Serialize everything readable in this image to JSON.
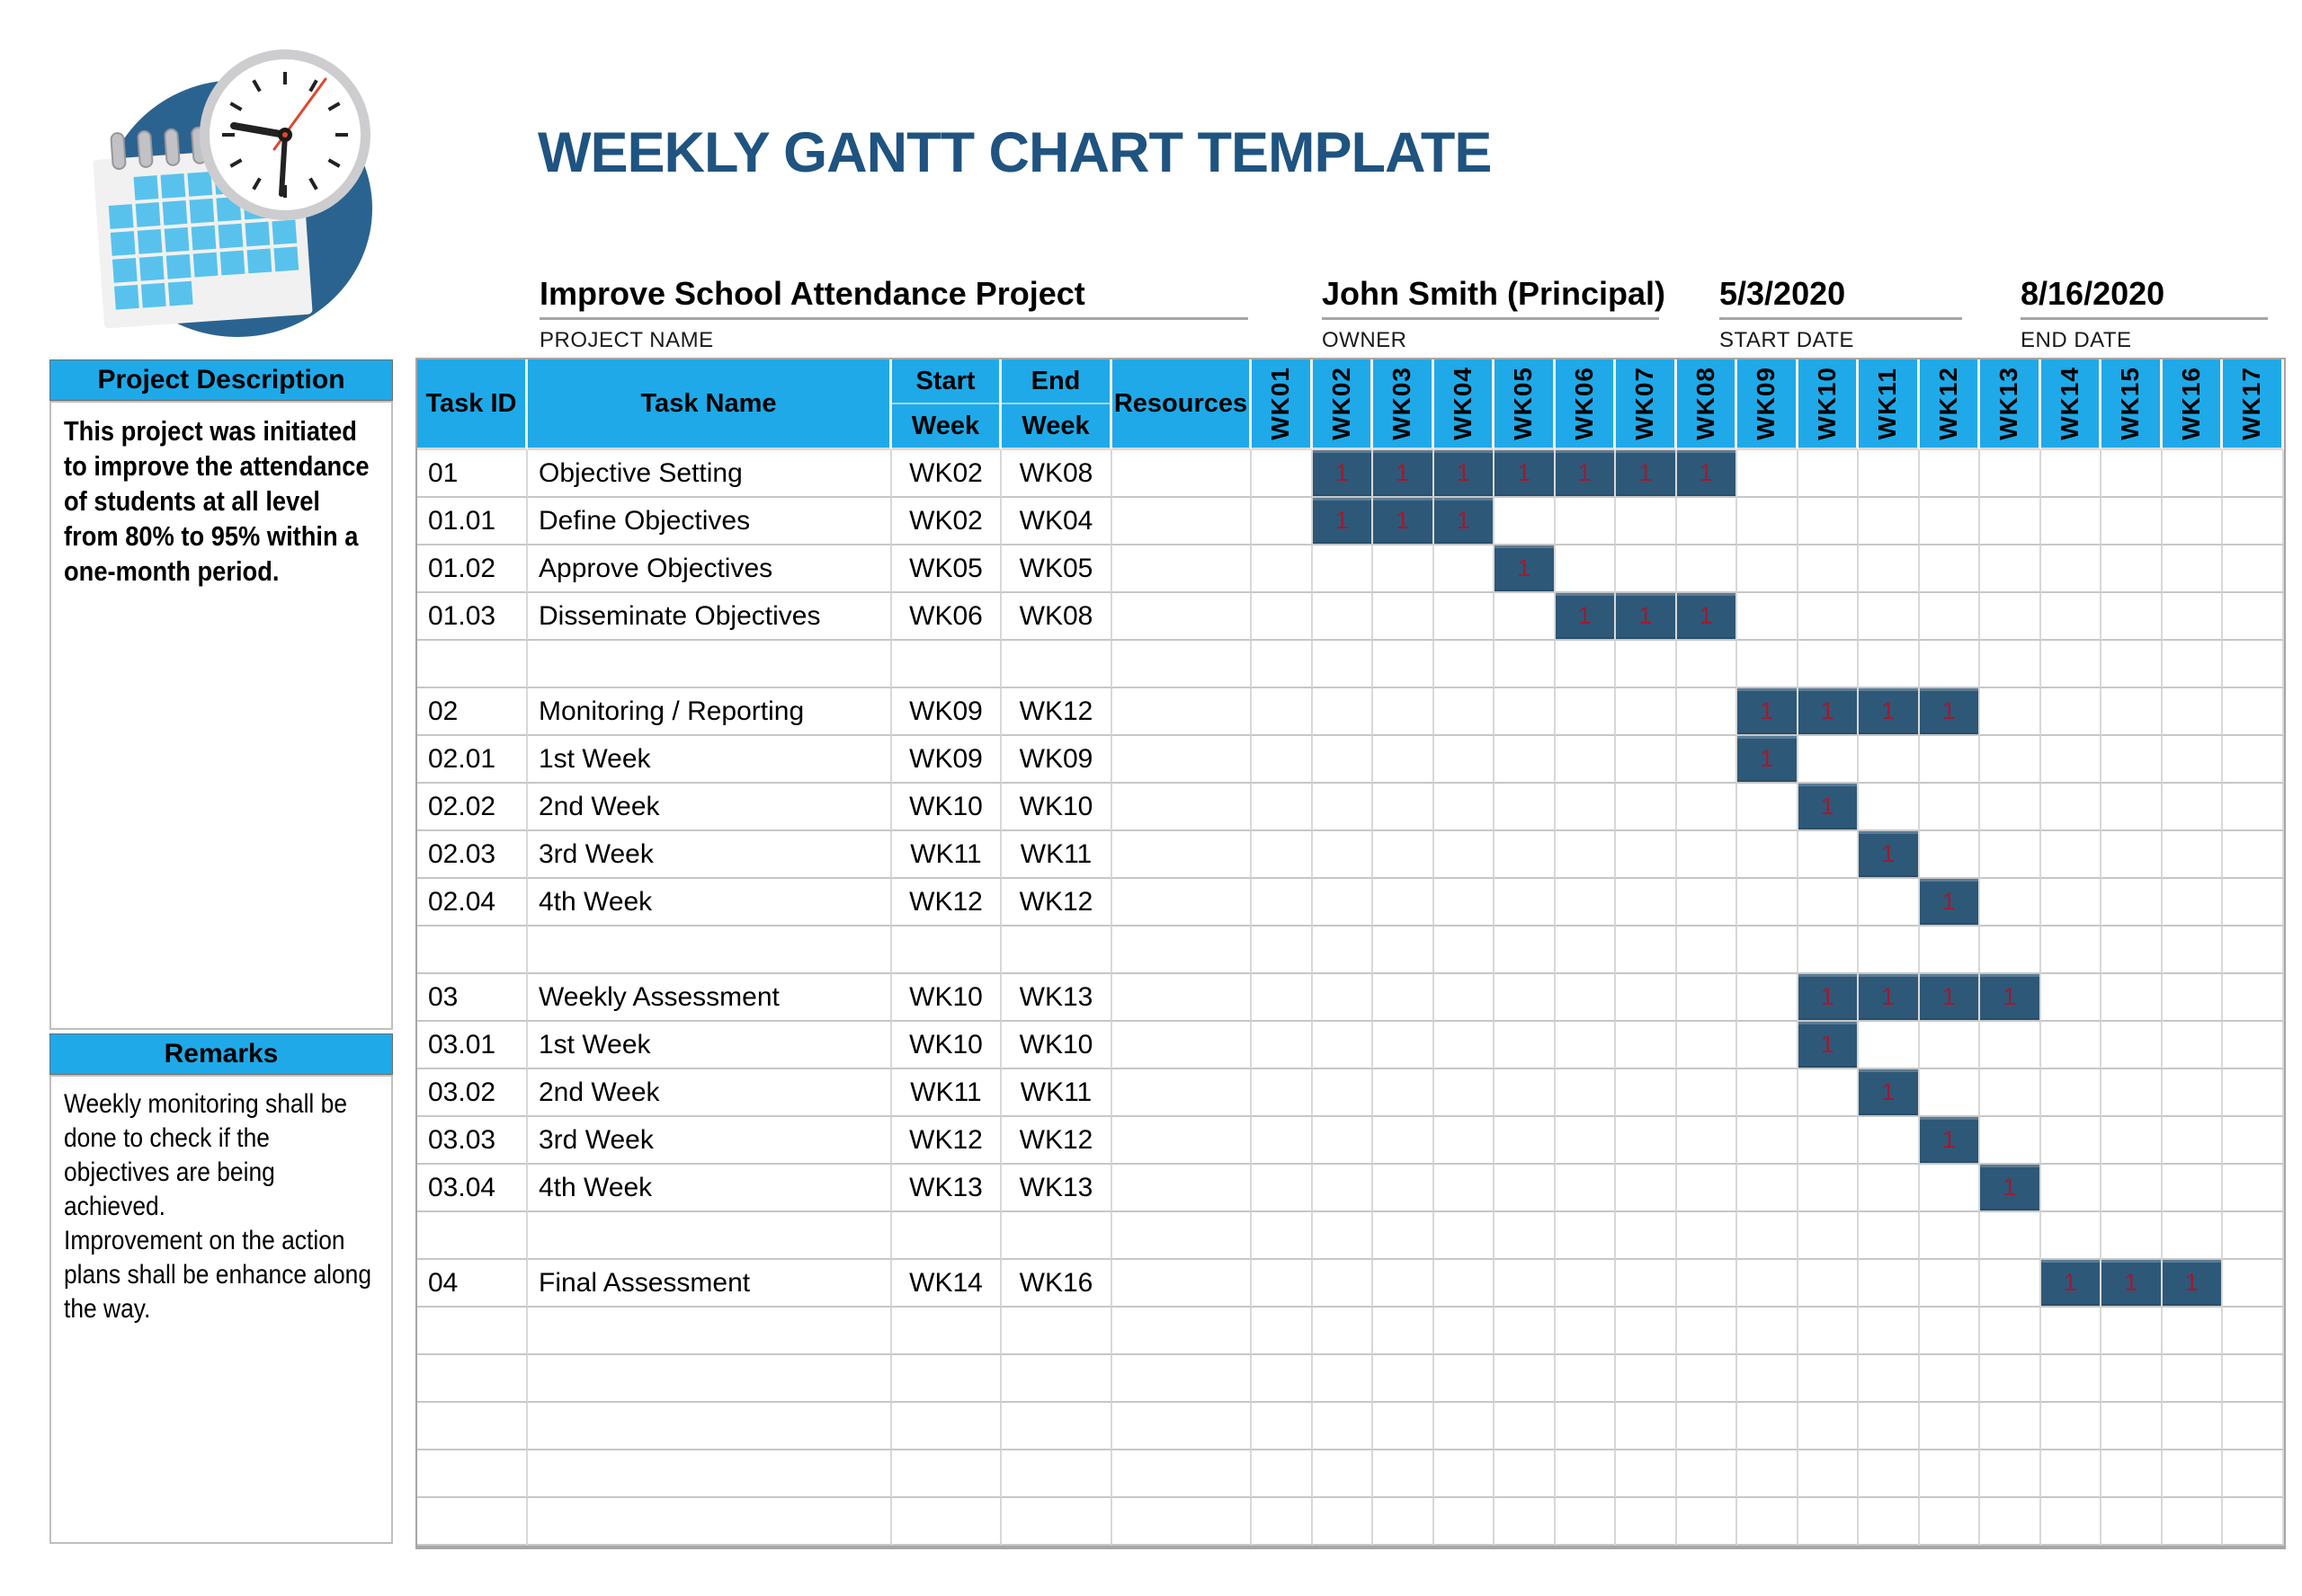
{
  "title": "WEEKLY GANTT CHART TEMPLATE",
  "logo": {
    "icon": "calendar-clock-icon"
  },
  "project_info": {
    "project_name": {
      "value": "Improve School Attendance Project",
      "label": "PROJECT NAME"
    },
    "owner": {
      "value": "John Smith (Principal)",
      "label": "OWNER"
    },
    "start_date": {
      "value": "5/3/2020",
      "label": "START DATE"
    },
    "end_date": {
      "value": "8/16/2020",
      "label": "END DATE"
    }
  },
  "sidebar": {
    "description_header": "Project Description",
    "description_text": "This project was initiated to improve the attendance of students at all level from 80% to 95% within a one-month period.",
    "remarks_header": "Remarks",
    "remarks_text": "Weekly monitoring shall be done to check if the objectives are being achieved.\nImprovement on the action plans shall be enhance along the way."
  },
  "table": {
    "column_headers": {
      "task_id": "Task ID",
      "task_name": "Task Name",
      "start_line1": "Start",
      "start_line2": "Week",
      "end_line1": "End",
      "end_line2": "Week",
      "resources": "Resources"
    },
    "week_columns": [
      "WK01",
      "WK02",
      "WK03",
      "WK04",
      "WK05",
      "WK06",
      "WK07",
      "WK08",
      "WK09",
      "WK10",
      "WK11",
      "WK12",
      "WK13",
      "WK14",
      "WK15",
      "WK16",
      "WK17"
    ],
    "bar_cell_value": "1",
    "rows": [
      {
        "id": "01",
        "name": "Objective Setting",
        "start": "WK02",
        "end": "WK08",
        "resources": ""
      },
      {
        "id": "01.01",
        "name": "Define Objectives",
        "start": "WK02",
        "end": "WK04",
        "resources": ""
      },
      {
        "id": "01.02",
        "name": "Approve Objectives",
        "start": "WK05",
        "end": "WK05",
        "resources": ""
      },
      {
        "id": "01.03",
        "name": "Disseminate Objectives",
        "start": "WK06",
        "end": "WK08",
        "resources": ""
      },
      {
        "id": "",
        "name": "",
        "start": "",
        "end": "",
        "resources": ""
      },
      {
        "id": "02",
        "name": "Monitoring / Reporting",
        "start": "WK09",
        "end": "WK12",
        "resources": ""
      },
      {
        "id": "02.01",
        "name": "1st Week",
        "start": "WK09",
        "end": "WK09",
        "resources": ""
      },
      {
        "id": "02.02",
        "name": "2nd Week",
        "start": "WK10",
        "end": "WK10",
        "resources": ""
      },
      {
        "id": "02.03",
        "name": "3rd Week",
        "start": "WK11",
        "end": "WK11",
        "resources": ""
      },
      {
        "id": "02.04",
        "name": "4th Week",
        "start": "WK12",
        "end": "WK12",
        "resources": ""
      },
      {
        "id": "",
        "name": "",
        "start": "",
        "end": "",
        "resources": ""
      },
      {
        "id": "03",
        "name": "Weekly Assessment",
        "start": "WK10",
        "end": "WK13",
        "resources": ""
      },
      {
        "id": "03.01",
        "name": "1st Week",
        "start": "WK10",
        "end": "WK10",
        "resources": ""
      },
      {
        "id": "03.02",
        "name": "2nd Week",
        "start": "WK11",
        "end": "WK11",
        "resources": ""
      },
      {
        "id": "03.03",
        "name": "3rd Week",
        "start": "WK12",
        "end": "WK12",
        "resources": ""
      },
      {
        "id": "03.04",
        "name": "4th Week",
        "start": "WK13",
        "end": "WK13",
        "resources": ""
      },
      {
        "id": "",
        "name": "",
        "start": "",
        "end": "",
        "resources": ""
      },
      {
        "id": "04",
        "name": "Final Assessment",
        "start": "WK14",
        "end": "WK16",
        "resources": ""
      },
      {
        "id": "",
        "name": "",
        "start": "",
        "end": "",
        "resources": ""
      },
      {
        "id": "",
        "name": "",
        "start": "",
        "end": "",
        "resources": ""
      },
      {
        "id": "",
        "name": "",
        "start": "",
        "end": "",
        "resources": ""
      },
      {
        "id": "",
        "name": "",
        "start": "",
        "end": "",
        "resources": ""
      },
      {
        "id": "",
        "name": "",
        "start": "",
        "end": "",
        "resources": ""
      }
    ]
  },
  "colors": {
    "header_cyan": "#1FA9E8",
    "bar_navy": "#2E5878",
    "bar_value_red": "#9E1B32",
    "title_blue": "#1F5380",
    "grid_gray": "#C7C7C7",
    "underline_gray": "#A6A6A6"
  },
  "chart_data": {
    "type": "gantt",
    "title": "WEEKLY GANTT CHART TEMPLATE",
    "project_name": "Improve School Attendance Project",
    "owner": "John Smith (Principal)",
    "start_date": "5/3/2020",
    "end_date": "8/16/2020",
    "x_categories": [
      "WK01",
      "WK02",
      "WK03",
      "WK04",
      "WK05",
      "WK06",
      "WK07",
      "WK08",
      "WK09",
      "WK10",
      "WK11",
      "WK12",
      "WK13",
      "WK14",
      "WK15",
      "WK16",
      "WK17"
    ],
    "bar_cell_value": 1,
    "tasks": [
      {
        "id": "01",
        "name": "Objective Setting",
        "start_week": "WK02",
        "end_week": "WK08"
      },
      {
        "id": "01.01",
        "name": "Define Objectives",
        "start_week": "WK02",
        "end_week": "WK04"
      },
      {
        "id": "01.02",
        "name": "Approve Objectives",
        "start_week": "WK05",
        "end_week": "WK05"
      },
      {
        "id": "01.03",
        "name": "Disseminate Objectives",
        "start_week": "WK06",
        "end_week": "WK08"
      },
      {
        "id": "02",
        "name": "Monitoring / Reporting",
        "start_week": "WK09",
        "end_week": "WK12"
      },
      {
        "id": "02.01",
        "name": "1st Week",
        "start_week": "WK09",
        "end_week": "WK09"
      },
      {
        "id": "02.02",
        "name": "2nd Week",
        "start_week": "WK10",
        "end_week": "WK10"
      },
      {
        "id": "02.03",
        "name": "3rd Week",
        "start_week": "WK11",
        "end_week": "WK11"
      },
      {
        "id": "02.04",
        "name": "4th Week",
        "start_week": "WK12",
        "end_week": "WK12"
      },
      {
        "id": "03",
        "name": "Weekly Assessment",
        "start_week": "WK10",
        "end_week": "WK13"
      },
      {
        "id": "03.01",
        "name": "1st Week",
        "start_week": "WK10",
        "end_week": "WK10"
      },
      {
        "id": "03.02",
        "name": "2nd Week",
        "start_week": "WK11",
        "end_week": "WK11"
      },
      {
        "id": "03.03",
        "name": "3rd Week",
        "start_week": "WK12",
        "end_week": "WK12"
      },
      {
        "id": "03.04",
        "name": "4th Week",
        "start_week": "WK13",
        "end_week": "WK13"
      },
      {
        "id": "04",
        "name": "Final Assessment",
        "start_week": "WK14",
        "end_week": "WK16"
      }
    ]
  }
}
